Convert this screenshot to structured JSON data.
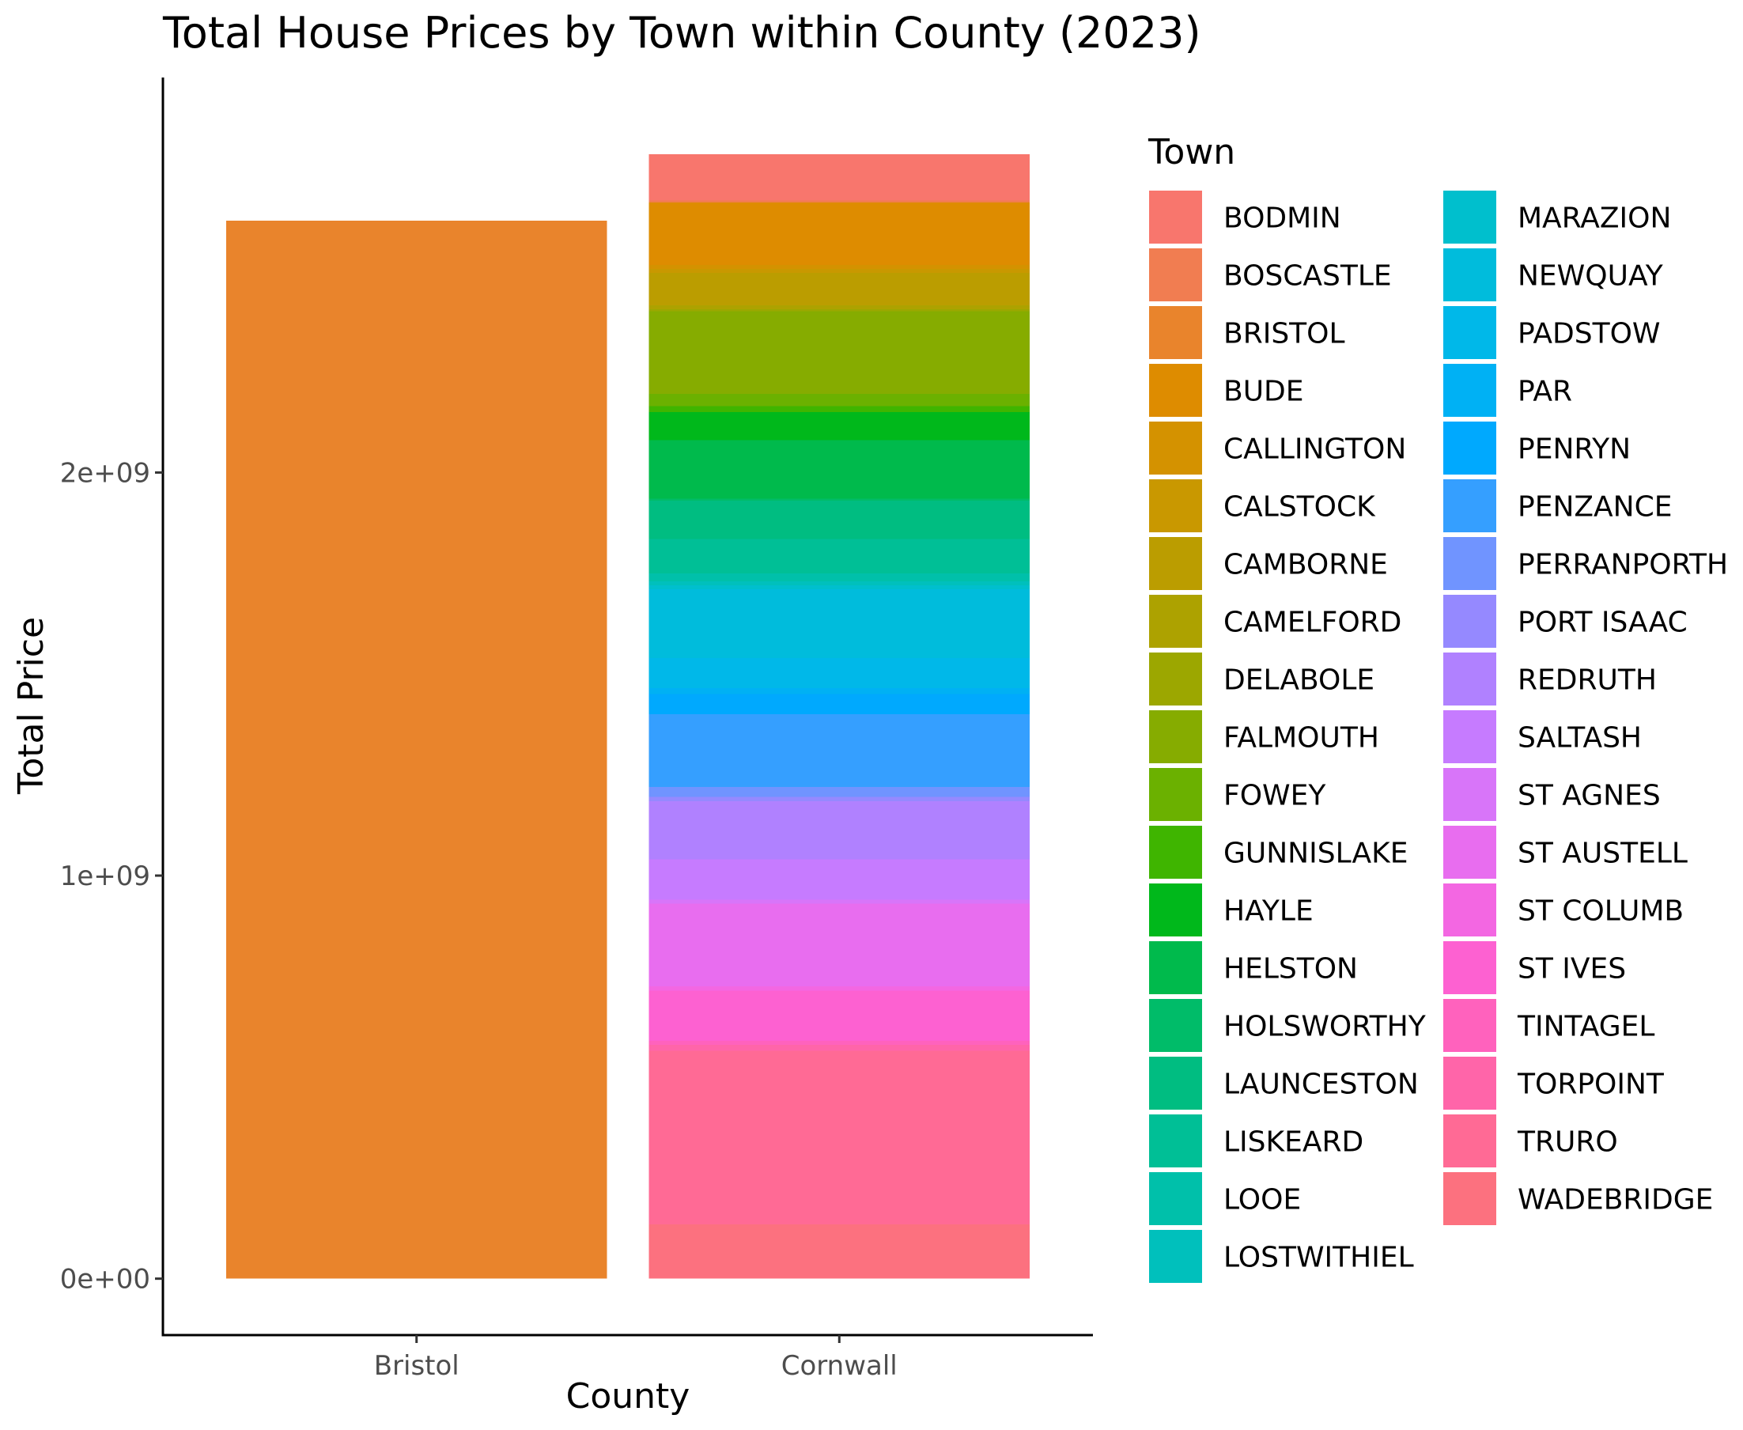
{
  "chart_data": {
    "type": "bar",
    "stacked": true,
    "title": "Total House Prices by Town within County (2023)",
    "xlabel": "County",
    "ylabel": "Total Price",
    "categories": [
      "Bristol",
      "Cornwall"
    ],
    "ylim": [
      -140000000,
      2980000000
    ],
    "yticks": [
      {
        "value": 0,
        "label": "0e+00"
      },
      {
        "value": 1000000000,
        "label": "1e+09"
      },
      {
        "value": 2000000000,
        "label": "2e+09"
      }
    ],
    "grid": false,
    "legend": {
      "title": "Town",
      "position": "right",
      "columns": 2,
      "entries": [
        {
          "name": "BODMIN",
          "color": "#F8766D"
        },
        {
          "name": "BOSCASTLE",
          "color": "#F17D51"
        },
        {
          "name": "BRISTOL",
          "color": "#E9842C"
        },
        {
          "name": "BUDE",
          "color": "#DE8C00"
        },
        {
          "name": "CALLINGTON",
          "color": "#D49200"
        },
        {
          "name": "CALSTOCK",
          "color": "#C99800"
        },
        {
          "name": "CAMBORNE",
          "color": "#BB9D00"
        },
        {
          "name": "CAMELFORD",
          "color": "#ADA200"
        },
        {
          "name": "DELABOLE",
          "color": "#9CA700"
        },
        {
          "name": "FALMOUTH",
          "color": "#86AC00"
        },
        {
          "name": "FOWEY",
          "color": "#6BB100"
        },
        {
          "name": "GUNNISLAKE",
          "color": "#3FB500"
        },
        {
          "name": "HAYLE",
          "color": "#00B81B"
        },
        {
          "name": "HELSTON",
          "color": "#00BA4C"
        },
        {
          "name": "HOLSWORTHY",
          "color": "#00BC69"
        },
        {
          "name": "LAUNCESTON",
          "color": "#00BD81"
        },
        {
          "name": "LISKEARD",
          "color": "#00BF96"
        },
        {
          "name": "LOOE",
          "color": "#00C0AA"
        },
        {
          "name": "LOSTWITHIEL",
          "color": "#00C0BC"
        },
        {
          "name": "MARAZION",
          "color": "#00BFCD"
        },
        {
          "name": "NEWQUAY",
          "color": "#00BCDC"
        },
        {
          "name": "PADSTOW",
          "color": "#00B8E9"
        },
        {
          "name": "PAR",
          "color": "#00B1F4"
        },
        {
          "name": "PENRYN",
          "color": "#00A9FE"
        },
        {
          "name": "PENZANCE",
          "color": "#359FFF"
        },
        {
          "name": "PERRANPORTH",
          "color": "#7094FF"
        },
        {
          "name": "PORT ISAAC",
          "color": "#9589FF"
        },
        {
          "name": "REDRUTH",
          "color": "#B081FF"
        },
        {
          "name": "SALTASH",
          "color": "#C67BFF"
        },
        {
          "name": "ST AGNES",
          "color": "#D875F9"
        },
        {
          "name": "ST AUSTELL",
          "color": "#E86DEF"
        },
        {
          "name": "ST COLUMB",
          "color": "#F367E2"
        },
        {
          "name": "ST IVES",
          "color": "#FD61D1"
        },
        {
          "name": "TINTAGEL",
          "color": "#FF62BD"
        },
        {
          "name": "TORPOINT",
          "color": "#FF65A9"
        },
        {
          "name": "TRURO",
          "color": "#FF6A95"
        },
        {
          "name": "WADEBRIDGE",
          "color": "#FC717F"
        }
      ]
    },
    "series": [
      {
        "county": "Bristol",
        "town": "BRISTOL",
        "value": 2625000000
      },
      {
        "county": "Cornwall",
        "town": "WADEBRIDGE",
        "value": 135000000
      },
      {
        "county": "Cornwall",
        "town": "TRURO",
        "value": 430000000
      },
      {
        "county": "Cornwall",
        "town": "TORPOINT",
        "value": 15000000
      },
      {
        "county": "Cornwall",
        "town": "TINTAGEL",
        "value": 10000000
      },
      {
        "county": "Cornwall",
        "town": "ST IVES",
        "value": 125000000
      },
      {
        "county": "Cornwall",
        "town": "ST COLUMB",
        "value": 10000000
      },
      {
        "county": "Cornwall",
        "town": "ST AUSTELL",
        "value": 205000000
      },
      {
        "county": "Cornwall",
        "town": "ST AGNES",
        "value": 10000000
      },
      {
        "county": "Cornwall",
        "town": "SALTASH",
        "value": 100000000
      },
      {
        "county": "Cornwall",
        "town": "REDRUTH",
        "value": 145000000
      },
      {
        "county": "Cornwall",
        "town": "PORT ISAAC",
        "value": 10000000
      },
      {
        "county": "Cornwall",
        "town": "PERRANPORTH",
        "value": 25000000
      },
      {
        "county": "Cornwall",
        "town": "PENZANCE",
        "value": 180000000
      },
      {
        "county": "Cornwall",
        "town": "PENRYN",
        "value": 50000000
      },
      {
        "county": "Cornwall",
        "town": "PAR",
        "value": 15000000
      },
      {
        "county": "Cornwall",
        "town": "PADSTOW",
        "value": 75000000
      },
      {
        "county": "Cornwall",
        "town": "NEWQUAY",
        "value": 170000000
      },
      {
        "county": "Cornwall",
        "town": "MARAZION",
        "value": 10000000
      },
      {
        "county": "Cornwall",
        "town": "LOSTWITHIEL",
        "value": 10000000
      },
      {
        "county": "Cornwall",
        "town": "LOOE",
        "value": 20000000
      },
      {
        "county": "Cornwall",
        "town": "LISKEARD",
        "value": 85000000
      },
      {
        "county": "Cornwall",
        "town": "LAUNCESTON",
        "value": 95000000
      },
      {
        "county": "Cornwall",
        "town": "HOLSWORTHY",
        "value": 5000000
      },
      {
        "county": "Cornwall",
        "town": "HELSTON",
        "value": 145000000
      },
      {
        "county": "Cornwall",
        "town": "HAYLE",
        "value": 70000000
      },
      {
        "county": "Cornwall",
        "town": "GUNNISLAKE",
        "value": 15000000
      },
      {
        "county": "Cornwall",
        "town": "FOWEY",
        "value": 30000000
      },
      {
        "county": "Cornwall",
        "town": "FALMOUTH",
        "value": 205000000
      },
      {
        "county": "Cornwall",
        "town": "DELABOLE",
        "value": 5000000
      },
      {
        "county": "Cornwall",
        "town": "CAMELFORD",
        "value": 10000000
      },
      {
        "county": "Cornwall",
        "town": "CAMBORNE",
        "value": 80000000
      },
      {
        "county": "Cornwall",
        "town": "CALSTOCK",
        "value": 10000000
      },
      {
        "county": "Cornwall",
        "town": "CALLINGTON",
        "value": 10000000
      },
      {
        "county": "Cornwall",
        "town": "BUDE",
        "value": 155000000
      },
      {
        "county": "Cornwall",
        "town": "BOSCASTLE",
        "value": 5000000
      },
      {
        "county": "Cornwall",
        "town": "BODMIN",
        "value": 115000000
      }
    ]
  }
}
